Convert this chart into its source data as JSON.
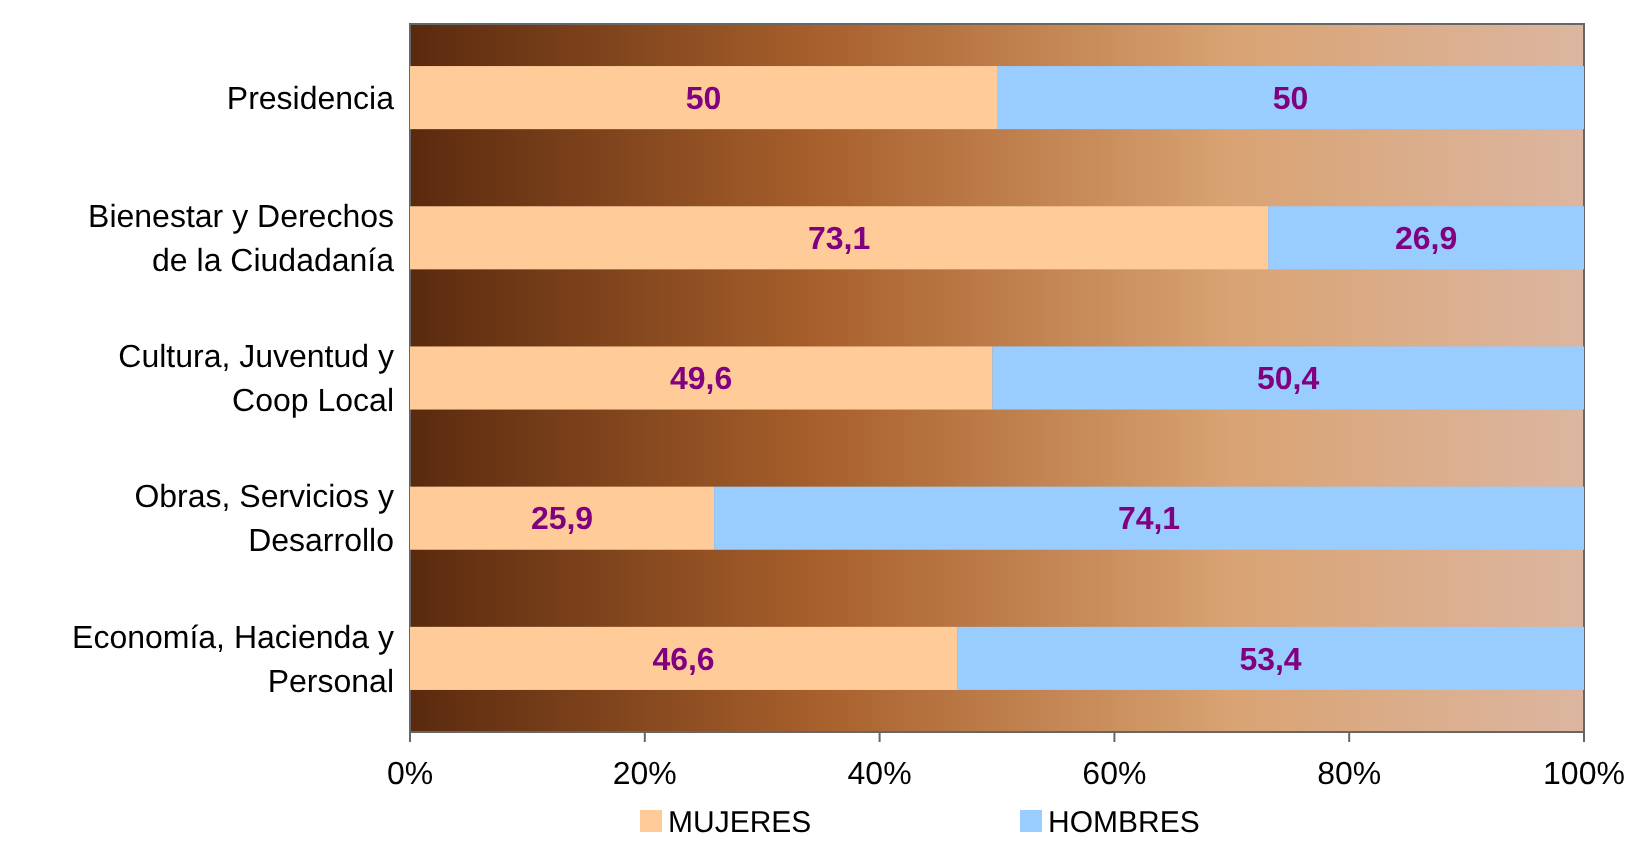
{
  "chart_data": {
    "type": "bar",
    "orientation": "horizontal",
    "stacked": true,
    "categories": [
      "Presidencia",
      "Bienestar y Derechos de la Ciudadanía",
      "Cultura, Juventud y Coop Local",
      "Obras, Servicios y Desarrollo",
      "Economía, Hacienda y Personal"
    ],
    "series": [
      {
        "name": "MUJERES",
        "color": "#ffcc99",
        "values": [
          50,
          73.1,
          49.6,
          25.9,
          46.6
        ],
        "value_labels": [
          "50",
          "73,1",
          "49,6",
          "25,9",
          "46,6"
        ]
      },
      {
        "name": "HOMBRES",
        "color": "#99ccff",
        "values": [
          50,
          26.9,
          50.4,
          74.1,
          53.4
        ],
        "value_labels": [
          "50",
          "26,9",
          "50,4",
          "74,1",
          "53,4"
        ]
      }
    ],
    "xlim": [
      0,
      100
    ],
    "xticks": [
      {
        "value": 0,
        "label": "0%"
      },
      {
        "value": 20,
        "label": "20%"
      },
      {
        "value": 40,
        "label": "40%"
      },
      {
        "value": 60,
        "label": "60%"
      },
      {
        "value": 80,
        "label": "80%"
      },
      {
        "value": 100,
        "label": "100%"
      }
    ],
    "grid": false,
    "legend": "bottom"
  }
}
